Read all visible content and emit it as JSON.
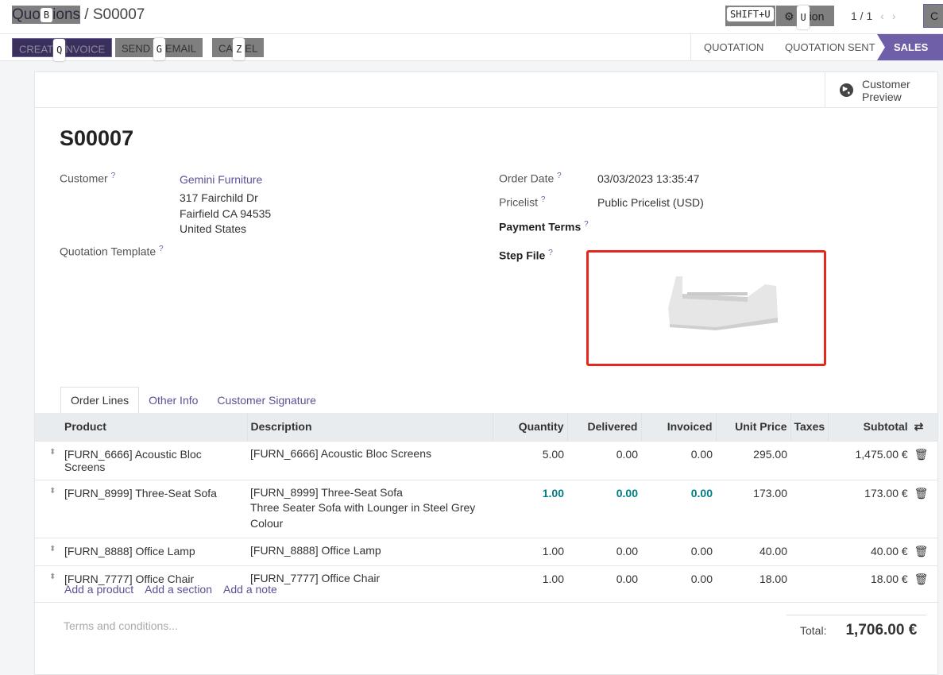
{
  "breadcrumb": {
    "parent": "Quotations",
    "parent_display_a": "Quo",
    "parent_display_b": "ions",
    "parent_key": "B",
    "current": "S00007"
  },
  "topbar": {
    "shift_hint": "SHIFT+U",
    "action_key": "U",
    "action_suffix": "ion",
    "pager": "1 / 1",
    "create_label": "C"
  },
  "actions": [
    {
      "a": "CREAT",
      "key": "Q",
      "b": "NVOICE"
    },
    {
      "a": "SEND ",
      "key": "G",
      "b": "EMAIL"
    },
    {
      "a": "CA",
      "key": "Z",
      "b": "EL"
    }
  ],
  "stages": [
    "QUOTATION",
    "QUOTATION SENT",
    "SALES ORDER"
  ],
  "customer_preview": {
    "line1": "Customer",
    "line2": "Preview"
  },
  "order": {
    "name": "S00007",
    "customer_label": "Customer",
    "customer": "Gemini Furniture",
    "address": [
      "317 Fairchild Dr",
      "Fairfield CA 94535",
      "United States"
    ],
    "template_label": "Quotation Template",
    "order_date_label": "Order Date",
    "order_date": "03/03/2023 13:35:47",
    "pricelist_label": "Pricelist",
    "pricelist": "Public Pricelist (USD)",
    "payment_terms_label": "Payment Terms",
    "step_file_label": "Step File",
    "help": "?"
  },
  "tabs": [
    "Order Lines",
    "Other Info",
    "Customer Signature"
  ],
  "table": {
    "headers": [
      "Product",
      "Description",
      "Quantity",
      "Delivered",
      "Invoiced",
      "Unit Price",
      "Taxes",
      "Subtotal"
    ],
    "rows": [
      {
        "product": "[FURN_6666] Acoustic Bloc Screens",
        "desc": [
          "[FURN_6666] Acoustic Bloc Screens"
        ],
        "qty": "5.00",
        "del": "0.00",
        "inv": "0.00",
        "price": "295.00",
        "taxes": "",
        "subtotal": "1,475.00 €"
      },
      {
        "product": "[FURN_8999] Three-Seat Sofa",
        "desc": [
          "[FURN_8999] Three-Seat Sofa",
          "Three Seater Sofa with Lounger in Steel Grey",
          "Colour"
        ],
        "qty": "1.00",
        "del": "0.00",
        "inv": "0.00",
        "price": "173.00",
        "taxes": "",
        "subtotal": "173.00 €",
        "highlight": true
      },
      {
        "product": "[FURN_8888] Office Lamp",
        "desc": [
          "[FURN_8888] Office Lamp"
        ],
        "qty": "1.00",
        "del": "0.00",
        "inv": "0.00",
        "price": "40.00",
        "taxes": "",
        "subtotal": "40.00 €"
      },
      {
        "product": "[FURN_7777] Office Chair",
        "desc": [
          "[FURN_7777] Office Chair"
        ],
        "qty": "1.00",
        "del": "0.00",
        "inv": "0.00",
        "price": "18.00",
        "taxes": "",
        "subtotal": "18.00 €"
      }
    ]
  },
  "add_links": [
    "Add a product",
    "Add a section",
    "Add a note"
  ],
  "terms_placeholder": "Terms and conditions...",
  "total": {
    "label": "Total:",
    "value": "1,706.00 €"
  }
}
